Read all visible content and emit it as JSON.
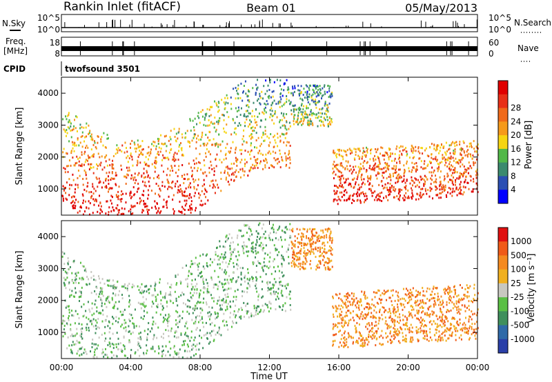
{
  "header": {
    "station": "Rankin Inlet (fitACF)",
    "beam": "Beam 01",
    "date": "05/May/2013"
  },
  "top_panels": {
    "nsky_label": "N.Sky",
    "nsky_ticks": [
      "10^5",
      "10^0"
    ],
    "nsearch_label": "N.Search",
    "freq_label_line1": "Freq.",
    "freq_label_line2": "[MHz]",
    "freq_ticks": [
      "18",
      "8"
    ],
    "nave_label": "Nave",
    "nave_ticks": [
      "60",
      "0"
    ],
    "cpid_label": "CPID",
    "cpid_value": "twofsound 3501"
  },
  "chart_data": [
    {
      "type": "heatmap",
      "panel": "power",
      "ylabel": "Slant Range [km]",
      "ylim": [
        180,
        4500
      ],
      "yticks": [
        "1000",
        "2000",
        "3000",
        "4000"
      ],
      "colorbar_label": "Power [dB]",
      "colorbar_ticks": [
        "4",
        "8",
        "12",
        "16",
        "20",
        "24",
        "28"
      ],
      "colors": [
        "#0000ff",
        "#2b4fb3",
        "#3b8a6e",
        "#52b848",
        "#f6d512",
        "#f59a1b",
        "#f06a1a",
        "#e83018",
        "#e00000"
      ]
    },
    {
      "type": "heatmap",
      "panel": "velocity",
      "ylabel": "Slant Range [km]",
      "ylim": [
        180,
        4500
      ],
      "yticks": [
        "1000",
        "2000",
        "3000",
        "4000"
      ],
      "colorbar_label": "Velocity [m s⁻¹]",
      "colorbar_ticks": [
        "1000",
        "500",
        "100",
        "25",
        "-25",
        "-100",
        "-500",
        "-1000"
      ],
      "colors": [
        "#2a3fa8",
        "#2f6aa8",
        "#3f8f5c",
        "#5abf44",
        "#c8c8c0",
        "#f0b020",
        "#f58a20",
        "#f05a18",
        "#e01010"
      ]
    }
  ],
  "xaxis": {
    "label": "Time UT",
    "ticks": [
      "00:00",
      "04:00",
      "08:00",
      "12:00",
      "16:00",
      "20:00",
      "00:00"
    ]
  }
}
